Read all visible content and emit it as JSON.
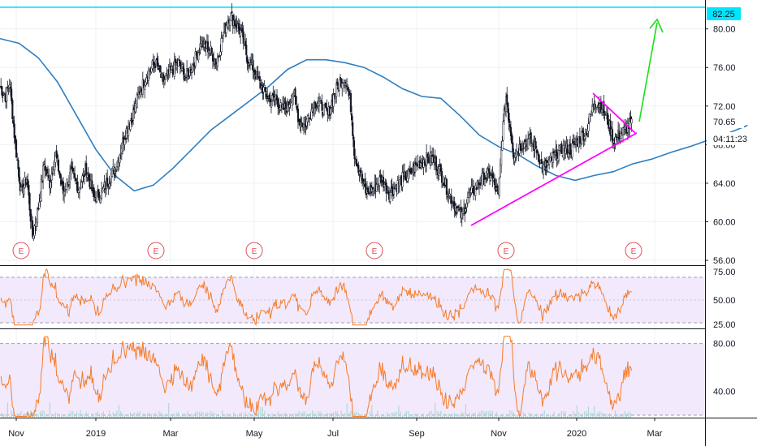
{
  "chart_data": {
    "type": "candlestick",
    "x_ticks": [
      "Nov",
      "2019",
      "Mar",
      "May",
      "Jul",
      "Sep",
      "Nov",
      "2020",
      "Mar"
    ],
    "price_axis": {
      "ticks": [
        56.0,
        60.0,
        64.0,
        68.0,
        72.0,
        76.0,
        80.0
      ],
      "tick_labels": [
        "56.00",
        "60.00",
        "64.00",
        "68.00",
        "72.00",
        "76.00",
        "80.00"
      ],
      "ylim": [
        55.5,
        83.0
      ]
    },
    "badges": {
      "target": "82.25",
      "last_price": "70.65",
      "countdown": "04:11:23"
    },
    "target_level": 82.25,
    "last_close": 70.65,
    "earnings_marker": "E",
    "earnings_count": 6,
    "price_anchors": [
      [
        0,
        74.0
      ],
      [
        6,
        73.0
      ],
      [
        10,
        74.5
      ],
      [
        16,
        68.0
      ],
      [
        22,
        63.0
      ],
      [
        28,
        64.5
      ],
      [
        34,
        58.5
      ],
      [
        40,
        61.5
      ],
      [
        46,
        66.0
      ],
      [
        52,
        64.0
      ],
      [
        58,
        67.0
      ],
      [
        66,
        63.0
      ],
      [
        74,
        65.0
      ],
      [
        82,
        63.5
      ],
      [
        90,
        65.5
      ],
      [
        98,
        62.5
      ],
      [
        106,
        63.0
      ],
      [
        114,
        64.5
      ],
      [
        122,
        66.0
      ],
      [
        130,
        69.0
      ],
      [
        138,
        71.0
      ],
      [
        146,
        73.5
      ],
      [
        154,
        75.5
      ],
      [
        162,
        76.5
      ],
      [
        170,
        74.5
      ],
      [
        178,
        75.5
      ],
      [
        186,
        76.5
      ],
      [
        194,
        75.0
      ],
      [
        202,
        76.5
      ],
      [
        210,
        78.5
      ],
      [
        218,
        78.0
      ],
      [
        226,
        76.5
      ],
      [
        234,
        80.0
      ],
      [
        240,
        81.5
      ],
      [
        246,
        80.5
      ],
      [
        252,
        79.5
      ],
      [
        258,
        77.0
      ],
      [
        264,
        76.0
      ],
      [
        270,
        74.5
      ],
      [
        276,
        73.5
      ],
      [
        282,
        72.5
      ],
      [
        288,
        73.0
      ],
      [
        294,
        71.5
      ],
      [
        300,
        72.0
      ],
      [
        306,
        73.5
      ],
      [
        312,
        70.5
      ],
      [
        318,
        70.0
      ],
      [
        324,
        71.5
      ],
      [
        330,
        72.5
      ],
      [
        336,
        72.0
      ],
      [
        342,
        71.0
      ],
      [
        348,
        73.0
      ],
      [
        354,
        74.5
      ],
      [
        360,
        75.0
      ],
      [
        366,
        72.0
      ],
      [
        370,
        67.0
      ],
      [
        376,
        65.0
      ],
      [
        382,
        63.0
      ],
      [
        390,
        63.5
      ],
      [
        398,
        64.5
      ],
      [
        406,
        63.0
      ],
      [
        412,
        63.5
      ],
      [
        420,
        64.5
      ],
      [
        428,
        65.0
      ],
      [
        436,
        66.0
      ],
      [
        444,
        66.5
      ],
      [
        452,
        66.5
      ],
      [
        460,
        65.0
      ],
      [
        468,
        63.0
      ],
      [
        476,
        61.5
      ],
      [
        482,
        60.5
      ],
      [
        488,
        62.5
      ],
      [
        496,
        63.5
      ],
      [
        504,
        64.5
      ],
      [
        512,
        65.0
      ],
      [
        520,
        62.5
      ],
      [
        524,
        69.0
      ],
      [
        528,
        73.0
      ],
      [
        536,
        67.0
      ],
      [
        544,
        68.0
      ],
      [
        552,
        68.5
      ],
      [
        560,
        67.5
      ],
      [
        566,
        65.5
      ],
      [
        572,
        66.0
      ],
      [
        580,
        67.0
      ],
      [
        588,
        67.5
      ],
      [
        596,
        67.5
      ],
      [
        604,
        68.5
      ],
      [
        612,
        69.5
      ],
      [
        620,
        72.5
      ],
      [
        628,
        72.0
      ],
      [
        634,
        70.5
      ],
      [
        640,
        68.5
      ],
      [
        646,
        69.0
      ],
      [
        652,
        69.5
      ],
      [
        658,
        70.2
      ]
    ],
    "ma_anchors": [
      [
        0,
        79.0
      ],
      [
        20,
        78.5
      ],
      [
        40,
        77.0
      ],
      [
        60,
        74.5
      ],
      [
        80,
        71.0
      ],
      [
        100,
        67.5
      ],
      [
        120,
        64.8
      ],
      [
        140,
        63.2
      ],
      [
        160,
        63.8
      ],
      [
        180,
        65.5
      ],
      [
        200,
        67.5
      ],
      [
        220,
        69.5
      ],
      [
        240,
        71.0
      ],
      [
        260,
        72.5
      ],
      [
        280,
        74.0
      ],
      [
        300,
        75.8
      ],
      [
        320,
        76.8
      ],
      [
        340,
        76.8
      ],
      [
        360,
        76.5
      ],
      [
        380,
        76.0
      ],
      [
        400,
        75.0
      ],
      [
        420,
        73.8
      ],
      [
        440,
        73.0
      ],
      [
        460,
        72.8
      ],
      [
        480,
        71.0
      ],
      [
        500,
        69.0
      ],
      [
        520,
        67.8
      ],
      [
        540,
        67.0
      ],
      [
        560,
        65.8
      ],
      [
        580,
        64.8
      ],
      [
        600,
        64.3
      ],
      [
        620,
        64.8
      ],
      [
        640,
        65.2
      ],
      [
        660,
        66.0
      ],
      [
        680,
        66.5
      ],
      [
        700,
        67.2
      ],
      [
        720,
        67.8
      ],
      [
        740,
        68.5
      ],
      [
        760,
        69.2
      ],
      [
        780,
        70.0
      ]
    ],
    "oscillator_1": {
      "ticks": [
        25.0,
        50.0,
        75.0
      ],
      "tick_labels": [
        "25.00",
        "50.00",
        "75.00"
      ],
      "ylim": [
        25.0,
        80.0
      ],
      "band": [
        30.0,
        70.0
      ]
    },
    "oscillator_2": {
      "ticks": [
        40.0,
        80.0
      ],
      "tick_labels": [
        "40.00",
        "80.00"
      ],
      "ylim": [
        18.0,
        92.0
      ],
      "band": [
        20.0,
        80.0
      ]
    },
    "colors": {
      "candle": "#131722",
      "moving_average": "#2f7fc1",
      "trendline": "#ff00ff",
      "projection_arrow": "#18e018",
      "target_line": "#00e5ff",
      "oscillator_line": "#f57c2a",
      "oscillator_band": "#f3e9fc",
      "earnings": "#e04e56",
      "volume": "#b2d8d6"
    }
  }
}
